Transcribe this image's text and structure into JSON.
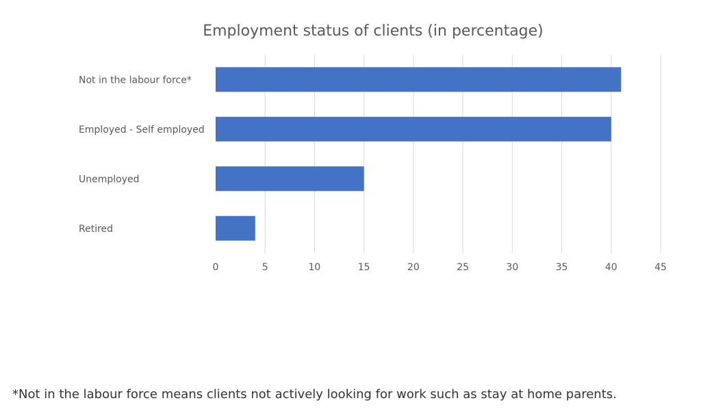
{
  "chart_data": {
    "type": "bar",
    "orientation": "horizontal",
    "title": "Employment status of clients (in percentage)",
    "categories": [
      "Not in the labour force*",
      "Employed - Self employed",
      "Unemployed",
      "Retired"
    ],
    "values": [
      41,
      40,
      15,
      4
    ],
    "xlim": [
      0,
      45
    ],
    "xticks": [
      0,
      5,
      10,
      15,
      20,
      25,
      30,
      35,
      40,
      45
    ],
    "grid": "vertical",
    "bar_color": "#4472C4",
    "legend": "none"
  },
  "footnote": "*Not in the labour force means clients not actively looking for work such as stay at home parents."
}
